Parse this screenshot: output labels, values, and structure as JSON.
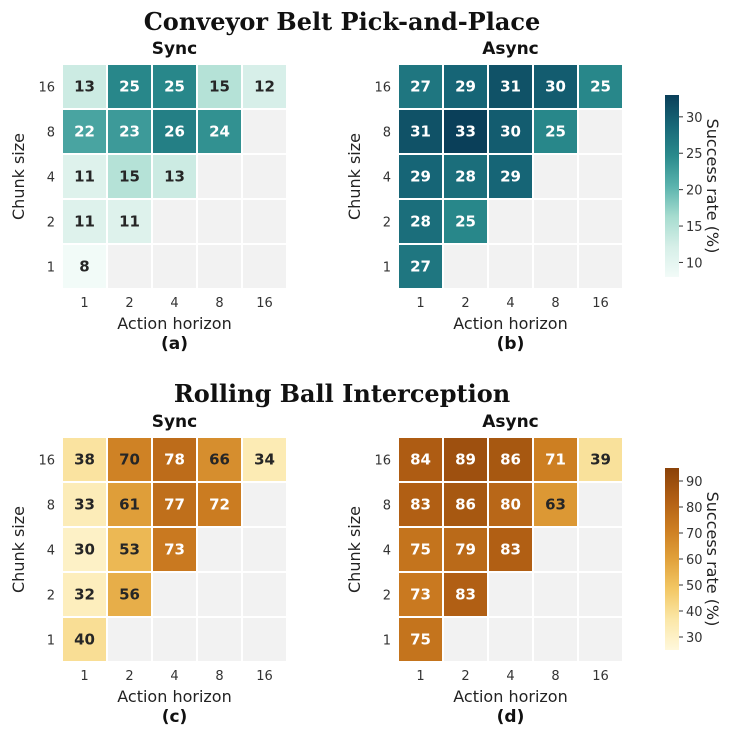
{
  "chart_data": [
    {
      "type": "heatmap",
      "group_title": "Conveyor Belt Pick-and-Place",
      "title": "Sync",
      "sublabel": "(a)",
      "xlabel": "Action horizon",
      "ylabel": "Chunk size",
      "x": [
        "1",
        "2",
        "4",
        "8",
        "16"
      ],
      "y": [
        "16",
        "8",
        "4",
        "2",
        "1"
      ],
      "values": [
        [
          13,
          25,
          25,
          15,
          12
        ],
        [
          22,
          23,
          26,
          24,
          null
        ],
        [
          11,
          15,
          13,
          null,
          null
        ],
        [
          11,
          11,
          null,
          null,
          null
        ],
        [
          8,
          null,
          null,
          null,
          null
        ]
      ],
      "colormap": "teal",
      "vmin": 8,
      "vmax": 33
    },
    {
      "type": "heatmap",
      "group_title": "Conveyor Belt Pick-and-Place",
      "title": "Async",
      "sublabel": "(b)",
      "xlabel": "Action horizon",
      "ylabel": "Chunk size",
      "x": [
        "1",
        "2",
        "4",
        "8",
        "16"
      ],
      "y": [
        "16",
        "8",
        "4",
        "2",
        "1"
      ],
      "values": [
        [
          27,
          29,
          31,
          30,
          25
        ],
        [
          31,
          33,
          30,
          25,
          null
        ],
        [
          29,
          28,
          29,
          null,
          null
        ],
        [
          28,
          25,
          null,
          null,
          null
        ],
        [
          27,
          null,
          null,
          null,
          null
        ]
      ],
      "colormap": "teal",
      "vmin": 8,
      "vmax": 33,
      "colorbar": {
        "label": "Success rate (%)",
        "ticks": [
          10,
          15,
          20,
          25,
          30
        ]
      }
    },
    {
      "type": "heatmap",
      "group_title": "Rolling Ball Interception",
      "title": "Sync",
      "sublabel": "(c)",
      "xlabel": "Action horizon",
      "ylabel": "Chunk size",
      "x": [
        "1",
        "2",
        "4",
        "8",
        "16"
      ],
      "y": [
        "16",
        "8",
        "4",
        "2",
        "1"
      ],
      "values": [
        [
          38,
          70,
          78,
          66,
          34
        ],
        [
          33,
          61,
          77,
          72,
          null
        ],
        [
          30,
          53,
          73,
          null,
          null
        ],
        [
          32,
          56,
          null,
          null,
          null
        ],
        [
          40,
          null,
          null,
          null,
          null
        ]
      ],
      "colormap": "brown",
      "vmin": 25,
      "vmax": 95
    },
    {
      "type": "heatmap",
      "group_title": "Rolling Ball Interception",
      "title": "Async",
      "sublabel": "(d)",
      "xlabel": "Action horizon",
      "ylabel": "Chunk size",
      "x": [
        "1",
        "2",
        "4",
        "8",
        "16"
      ],
      "y": [
        "16",
        "8",
        "4",
        "2",
        "1"
      ],
      "values": [
        [
          84,
          89,
          86,
          71,
          39
        ],
        [
          83,
          86,
          80,
          63,
          null
        ],
        [
          75,
          79,
          83,
          null,
          null
        ],
        [
          73,
          83,
          null,
          null,
          null
        ],
        [
          75,
          null,
          null,
          null,
          null
        ]
      ],
      "colormap": "brown",
      "vmin": 25,
      "vmax": 95,
      "colorbar": {
        "label": "Success rate (%)",
        "ticks": [
          30,
          40,
          50,
          60,
          70,
          80,
          90
        ]
      }
    }
  ],
  "colormaps": {
    "teal": [
      "#f2fbf8",
      "#d6efe8",
      "#a6dccf",
      "#5ab3ad",
      "#2a8a8c",
      "#176777",
      "#0a3f59"
    ],
    "brown": [
      "#fff8dc",
      "#fbe7a8",
      "#f3c865",
      "#e1a13b",
      "#cc7d21",
      "#b05e14",
      "#8a4209"
    ]
  },
  "empty_cell_color": "#f2f2f2"
}
